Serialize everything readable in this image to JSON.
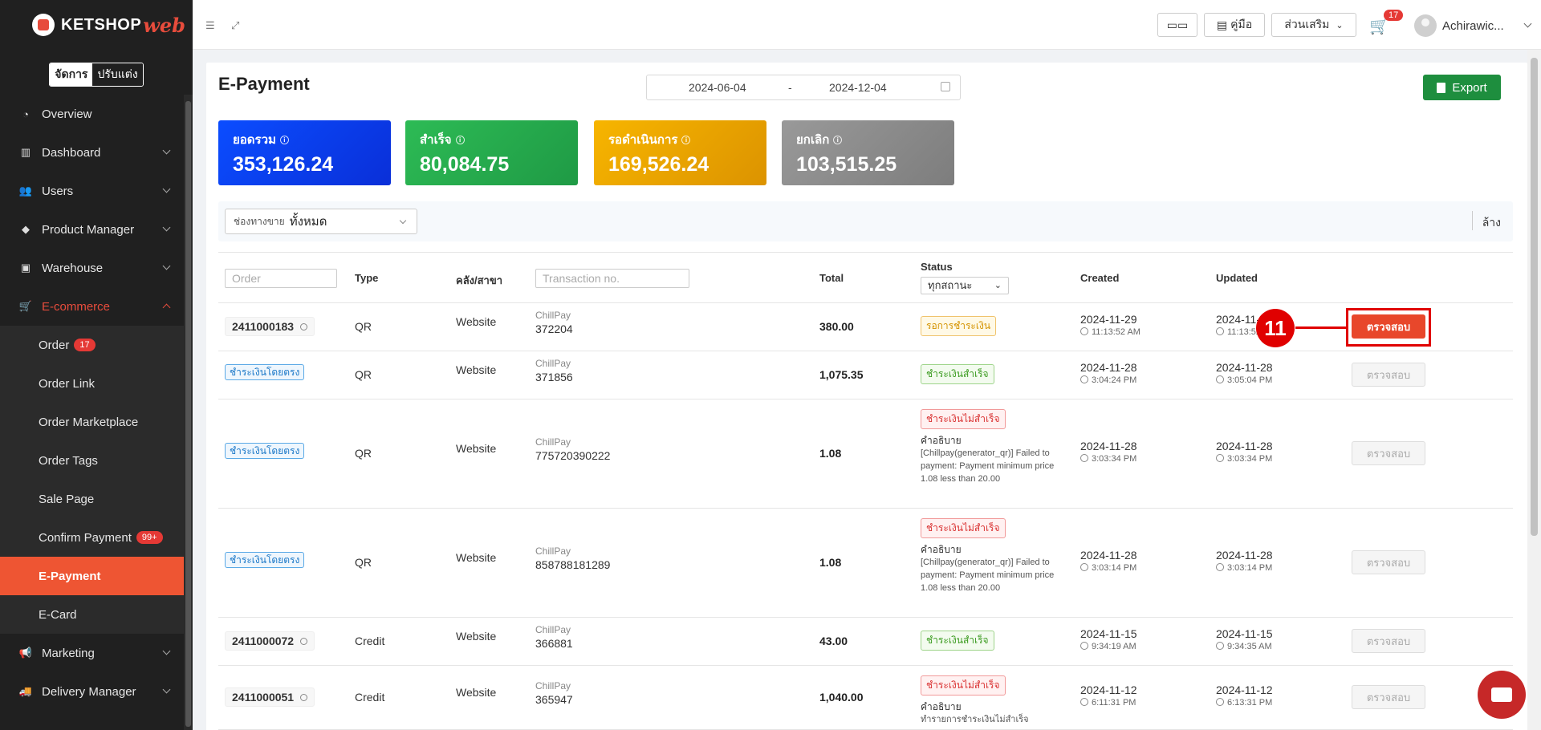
{
  "brand": {
    "name": "KETSHOP",
    "suffix": "web"
  },
  "mode": {
    "manage": "จัดการ",
    "customize": "ปรับแต่ง"
  },
  "nav": {
    "overview": "Overview",
    "dashboard": "Dashboard",
    "users": "Users",
    "product_manager": "Product Manager",
    "warehouse": "Warehouse",
    "ecommerce": "E-commerce",
    "marketing": "Marketing",
    "delivery_manager": "Delivery Manager",
    "sub": {
      "order": "Order",
      "order_badge": "17",
      "order_link": "Order Link",
      "order_marketplace": "Order Marketplace",
      "order_tags": "Order Tags",
      "sale_page": "Sale Page",
      "confirm_payment": "Confirm Payment",
      "confirm_badge": "99+",
      "epayment": "E-Payment",
      "ecard": "E-Card"
    }
  },
  "topbar": {
    "manual": "คู่มือ",
    "addons": "ส่วนเสริม",
    "cart_count": "17",
    "user": "Achirawic..."
  },
  "page": {
    "title": "E-Payment",
    "date_from": "2024-06-04",
    "date_sep": "-",
    "date_to": "2024-12-04",
    "export": "Export"
  },
  "cards": [
    {
      "label": "ยอดรวม",
      "value": "353,126.24",
      "color": "#0a3df5"
    },
    {
      "label": "สำเร็จ",
      "value": "80,084.75",
      "color": "#22a84a"
    },
    {
      "label": "รอดำเนินการ",
      "value": "169,526.24",
      "color": "#e6a100"
    },
    {
      "label": "ยกเลิก",
      "value": "103,515.25",
      "color": "#8a8a8a"
    }
  ],
  "filter": {
    "channel_label": "ช่องทางขาย",
    "channel_value": "ทั้งหมด",
    "clear": "ล้าง"
  },
  "table": {
    "headers": {
      "order_placeholder": "Order",
      "type": "Type",
      "branch": "คลัง/สาขา",
      "tx_placeholder": "Transaction no.",
      "total": "Total",
      "status": "Status",
      "status_select": "ทุกสถานะ",
      "created": "Created",
      "updated": "Updated"
    },
    "check_label": "ตรวจสอบ",
    "desc_label": "คำอธิบาย",
    "rows": [
      {
        "order": "2411000183",
        "type": "QR",
        "branch": "Website",
        "gateway": "ChillPay",
        "tx": "372204",
        "total": "380.00",
        "status": "รอการชำระเงิน",
        "status_kind": "pending",
        "created_d": "2024-11-29",
        "created_t": "11:13:52 AM",
        "updated_d": "2024-11-29",
        "updated_t": "11:13:52 AM"
      },
      {
        "order": "ชำระเงินโดยตรง",
        "type": "QR",
        "branch": "Website",
        "gateway": "ChillPay",
        "tx": "371856",
        "total": "1,075.35",
        "status": "ชำระเงินสำเร็จ",
        "status_kind": "ok",
        "created_d": "2024-11-28",
        "created_t": "3:04:24 PM",
        "updated_d": "2024-11-28",
        "updated_t": "3:05:04 PM"
      },
      {
        "order": "ชำระเงินโดยตรง",
        "type": "QR",
        "branch": "Website",
        "gateway": "ChillPay",
        "tx": "775720390222",
        "total": "1.08",
        "status": "ชำระเงินไม่สำเร็จ",
        "status_kind": "fail",
        "desc": "[Chillpay(generator_qr)] Failed to payment: Payment minimum price 1.08 less than 20.00",
        "created_d": "2024-11-28",
        "created_t": "3:03:34 PM",
        "updated_d": "2024-11-28",
        "updated_t": "3:03:34 PM"
      },
      {
        "order": "ชำระเงินโดยตรง",
        "type": "QR",
        "branch": "Website",
        "gateway": "ChillPay",
        "tx": "858788181289",
        "total": "1.08",
        "status": "ชำระเงินไม่สำเร็จ",
        "status_kind": "fail",
        "desc": "[Chillpay(generator_qr)] Failed to payment: Payment minimum price 1.08 less than 20.00",
        "created_d": "2024-11-28",
        "created_t": "3:03:14 PM",
        "updated_d": "2024-11-28",
        "updated_t": "3:03:14 PM"
      },
      {
        "order": "2411000072",
        "type": "Credit",
        "branch": "Website",
        "gateway": "ChillPay",
        "tx": "366881",
        "total": "43.00",
        "status": "ชำระเงินสำเร็จ",
        "status_kind": "ok",
        "created_d": "2024-11-15",
        "created_t": "9:34:19 AM",
        "updated_d": "2024-11-15",
        "updated_t": "9:34:35 AM"
      },
      {
        "order": "2411000051",
        "type": "Credit",
        "branch": "Website",
        "gateway": "ChillPay",
        "tx": "365947",
        "total": "1,040.00",
        "status": "ชำระเงินไม่สำเร็จ",
        "status_kind": "fail",
        "desc": "ทำรายการชำระเงินไม่สำเร็จ",
        "created_d": "2024-11-12",
        "created_t": "6:11:31 PM",
        "updated_d": "2024-11-12",
        "updated_t": "6:13:31 PM"
      }
    ]
  },
  "annotation": {
    "step": "11"
  }
}
